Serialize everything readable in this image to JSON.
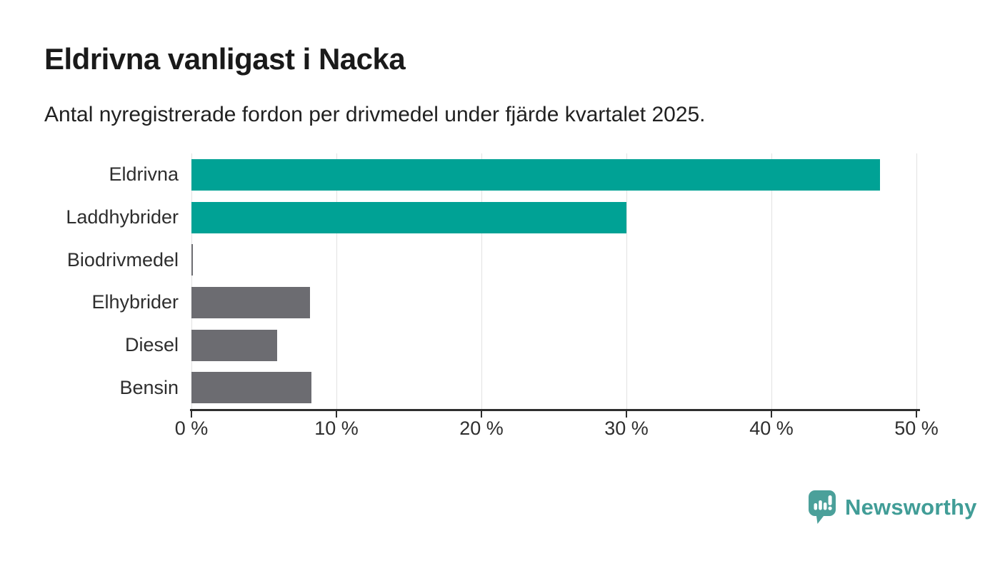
{
  "chart_data": {
    "type": "bar",
    "orientation": "horizontal",
    "title": "Eldrivna vanligast i Nacka",
    "subtitle": "Antal nyregistrerade fordon per drivmedel under fjärde kvartalet 2025.",
    "categories": [
      "Eldrivna",
      "Laddhybrider",
      "Biodrivmedel",
      "Elhybrider",
      "Diesel",
      "Bensin"
    ],
    "values": [
      47.5,
      30.0,
      0.1,
      8.2,
      5.9,
      8.3
    ],
    "unit": "%",
    "bar_colors": [
      "#00a295",
      "#00a295",
      "#6c6c71",
      "#6c6c71",
      "#6c6c71",
      "#6c6c71"
    ],
    "highlight_color": "#00a295",
    "default_color": "#6c6c71",
    "xlim": [
      0,
      50
    ],
    "x_ticks": [
      {
        "value": 0,
        "label": "0 %"
      },
      {
        "value": 10,
        "label": "10 %"
      },
      {
        "value": 20,
        "label": "20 %"
      },
      {
        "value": 30,
        "label": "30 %"
      },
      {
        "value": 40,
        "label": "40 %"
      },
      {
        "value": 50,
        "label": "50 %"
      }
    ],
    "grid": "vertical-only",
    "legend": "none",
    "gridline_color": "#e2e2e2",
    "axis_color": "#2e2e2e"
  },
  "footer": {
    "logo_text": "Newsworthy",
    "logo_color": "#419d97",
    "logo_icon_color": "#4ba09a"
  }
}
